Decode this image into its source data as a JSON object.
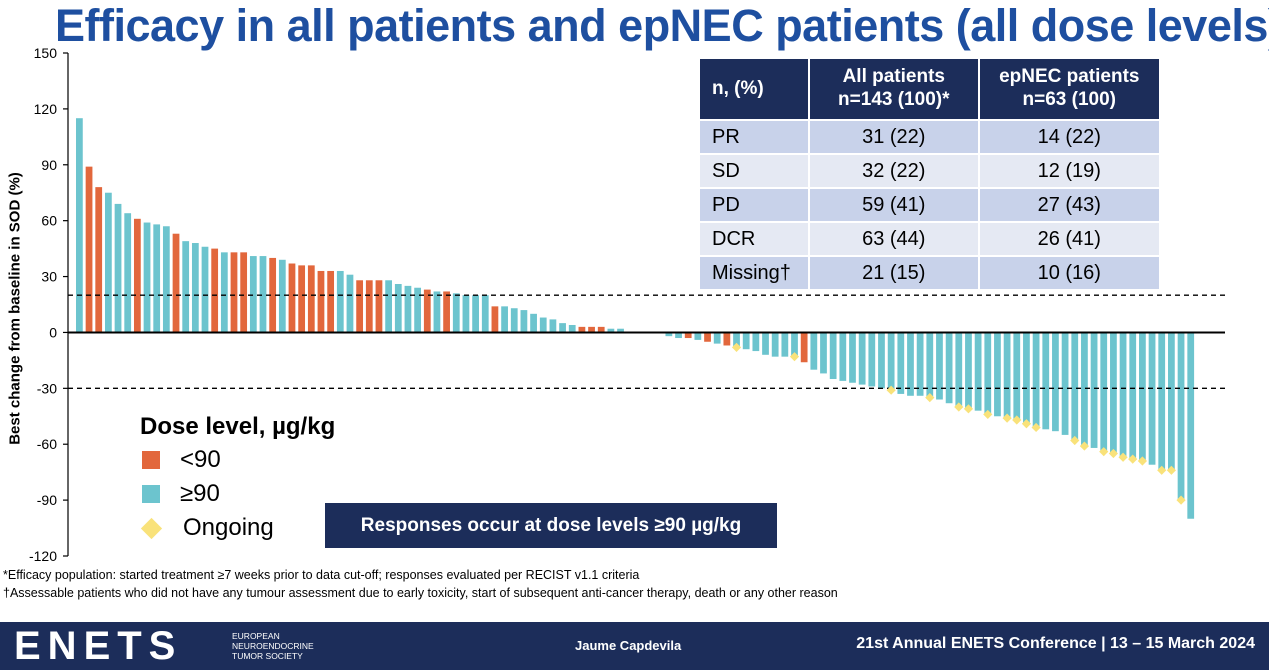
{
  "slide": {
    "title": "Efficacy in all patients and epNEC patients (all dose levels)"
  },
  "chart_data": {
    "type": "bar",
    "ylabel": "Best change from baseline in SOD (%)",
    "ylim": [
      -120,
      150
    ],
    "yticks": [
      "150",
      "120",
      "90",
      "60",
      "30",
      "0",
      "-30",
      "-60",
      "-90",
      "-120"
    ],
    "reference_lines": [
      20,
      -30
    ],
    "colors": {
      "<90": "#e2673c",
      "≥90": "#6cc4ce",
      "ongoing": "#f9e27a"
    },
    "bars": [
      {
        "v": 115,
        "d": "≥90"
      },
      {
        "v": 89,
        "d": "<90"
      },
      {
        "v": 78,
        "d": "<90"
      },
      {
        "v": 75,
        "d": "≥90"
      },
      {
        "v": 69,
        "d": "≥90"
      },
      {
        "v": 64,
        "d": "≥90"
      },
      {
        "v": 61,
        "d": "<90"
      },
      {
        "v": 59,
        "d": "≥90"
      },
      {
        "v": 58,
        "d": "≥90"
      },
      {
        "v": 57,
        "d": "≥90"
      },
      {
        "v": 53,
        "d": "<90"
      },
      {
        "v": 49,
        "d": "≥90"
      },
      {
        "v": 48,
        "d": "≥90"
      },
      {
        "v": 46,
        "d": "≥90"
      },
      {
        "v": 45,
        "d": "<90"
      },
      {
        "v": 43,
        "d": "≥90"
      },
      {
        "v": 43,
        "d": "<90"
      },
      {
        "v": 43,
        "d": "<90"
      },
      {
        "v": 41,
        "d": "≥90"
      },
      {
        "v": 41,
        "d": "≥90"
      },
      {
        "v": 40,
        "d": "<90"
      },
      {
        "v": 39,
        "d": "≥90"
      },
      {
        "v": 37,
        "d": "<90"
      },
      {
        "v": 36,
        "d": "<90"
      },
      {
        "v": 36,
        "d": "<90"
      },
      {
        "v": 33,
        "d": "<90"
      },
      {
        "v": 33,
        "d": "<90"
      },
      {
        "v": 33,
        "d": "≥90"
      },
      {
        "v": 31,
        "d": "≥90"
      },
      {
        "v": 28,
        "d": "<90"
      },
      {
        "v": 28,
        "d": "<90"
      },
      {
        "v": 28,
        "d": "<90"
      },
      {
        "v": 28,
        "d": "≥90"
      },
      {
        "v": 26,
        "d": "≥90"
      },
      {
        "v": 25,
        "d": "≥90"
      },
      {
        "v": 24,
        "d": "≥90"
      },
      {
        "v": 23,
        "d": "<90"
      },
      {
        "v": 22,
        "d": "≥90"
      },
      {
        "v": 22,
        "d": "<90"
      },
      {
        "v": 21,
        "d": "≥90"
      },
      {
        "v": 20,
        "d": "≥90"
      },
      {
        "v": 20,
        "d": "≥90"
      },
      {
        "v": 20,
        "d": "≥90"
      },
      {
        "v": 14,
        "d": "<90"
      },
      {
        "v": 14,
        "d": "≥90"
      },
      {
        "v": 13,
        "d": "≥90"
      },
      {
        "v": 12,
        "d": "≥90"
      },
      {
        "v": 10,
        "d": "≥90"
      },
      {
        "v": 8,
        "d": "≥90"
      },
      {
        "v": 7,
        "d": "≥90"
      },
      {
        "v": 5,
        "d": "≥90"
      },
      {
        "v": 4,
        "d": "≥90"
      },
      {
        "v": 3,
        "d": "<90"
      },
      {
        "v": 3,
        "d": "<90"
      },
      {
        "v": 3,
        "d": "<90"
      },
      {
        "v": 2,
        "d": "≥90"
      },
      {
        "v": 2,
        "d": "≥90"
      },
      {
        "v": 0,
        "d": "≥90"
      },
      {
        "v": 0,
        "d": "≥90"
      },
      {
        "v": 0,
        "d": "≥90"
      },
      {
        "v": 0,
        "d": "≥90"
      },
      {
        "v": -2,
        "d": "≥90"
      },
      {
        "v": -3,
        "d": "≥90"
      },
      {
        "v": -3,
        "d": "<90"
      },
      {
        "v": -4,
        "d": "≥90"
      },
      {
        "v": -5,
        "d": "<90"
      },
      {
        "v": -6,
        "d": "≥90"
      },
      {
        "v": -7,
        "d": "<90"
      },
      {
        "v": -8,
        "d": "≥90",
        "o": true
      },
      {
        "v": -9,
        "d": "≥90"
      },
      {
        "v": -10,
        "d": "≥90"
      },
      {
        "v": -12,
        "d": "≥90"
      },
      {
        "v": -13,
        "d": "≥90"
      },
      {
        "v": -13,
        "d": "≥90"
      },
      {
        "v": -13,
        "d": "≥90",
        "o": true
      },
      {
        "v": -16,
        "d": "<90"
      },
      {
        "v": -20,
        "d": "≥90"
      },
      {
        "v": -22,
        "d": "≥90"
      },
      {
        "v": -25,
        "d": "≥90"
      },
      {
        "v": -26,
        "d": "≥90"
      },
      {
        "v": -27,
        "d": "≥90"
      },
      {
        "v": -28,
        "d": "≥90"
      },
      {
        "v": -29,
        "d": "≥90"
      },
      {
        "v": -30,
        "d": "≥90"
      },
      {
        "v": -31,
        "d": "≥90",
        "o": true
      },
      {
        "v": -33,
        "d": "≥90"
      },
      {
        "v": -34,
        "d": "≥90"
      },
      {
        "v": -34,
        "d": "≥90"
      },
      {
        "v": -35,
        "d": "≥90",
        "o": true
      },
      {
        "v": -36,
        "d": "≥90"
      },
      {
        "v": -38,
        "d": "≥90"
      },
      {
        "v": -40,
        "d": "≥90",
        "o": true
      },
      {
        "v": -41,
        "d": "≥90",
        "o": true
      },
      {
        "v": -42,
        "d": "≥90"
      },
      {
        "v": -44,
        "d": "≥90",
        "o": true
      },
      {
        "v": -45,
        "d": "≥90"
      },
      {
        "v": -46,
        "d": "≥90",
        "o": true
      },
      {
        "v": -47,
        "d": "≥90",
        "o": true
      },
      {
        "v": -49,
        "d": "≥90",
        "o": true
      },
      {
        "v": -51,
        "d": "≥90",
        "o": true
      },
      {
        "v": -52,
        "d": "≥90"
      },
      {
        "v": -53,
        "d": "≥90"
      },
      {
        "v": -55,
        "d": "≥90"
      },
      {
        "v": -58,
        "d": "≥90",
        "o": true
      },
      {
        "v": -61,
        "d": "≥90",
        "o": true
      },
      {
        "v": -62,
        "d": "≥90"
      },
      {
        "v": -64,
        "d": "≥90",
        "o": true
      },
      {
        "v": -65,
        "d": "≥90",
        "o": true
      },
      {
        "v": -67,
        "d": "≥90",
        "o": true
      },
      {
        "v": -68,
        "d": "≥90",
        "o": true
      },
      {
        "v": -69,
        "d": "≥90",
        "o": true
      },
      {
        "v": -71,
        "d": "≥90"
      },
      {
        "v": -74,
        "d": "≥90",
        "o": true
      },
      {
        "v": -74,
        "d": "≥90",
        "o": true
      },
      {
        "v": -90,
        "d": "≥90",
        "o": true
      },
      {
        "v": -100,
        "d": "≥90"
      }
    ]
  },
  "table": {
    "headers": [
      "n, (%)",
      "All patients n=143 (100)*",
      "epNEC patients n=63 (100)"
    ],
    "rows": [
      {
        "label": "PR",
        "all": "31 (22)",
        "epnec": "14 (22)"
      },
      {
        "label": "SD",
        "all": "32 (22)",
        "epnec": "12 (19)"
      },
      {
        "label": "PD",
        "all": "59 (41)",
        "epnec": "27 (43)"
      },
      {
        "label": "DCR",
        "all": "63 (44)",
        "epnec": "26 (41)"
      },
      {
        "label": "Missing†",
        "all": "21 (15)",
        "epnec": "10 (16)"
      }
    ]
  },
  "legend": {
    "title": "Dose level, µg/kg",
    "items": [
      "<90",
      "≥90",
      "Ongoing"
    ]
  },
  "banner": "Responses occur at dose levels ≥90 µg/kg",
  "footnotes": [
    "*Efficacy population: started treatment ≥7 weeks prior to data cut-off; responses evaluated per RECIST v1.1 criteria",
    "†Assessable patients who did not have any tumour assessment due to early toxicity, start of subsequent anti-cancer therapy, death or any other reason"
  ],
  "footer": {
    "logo": "ENETS",
    "org_line1": "EUROPEAN",
    "org_line2": "NEUROENDOCRINE",
    "org_line3": "TUMOR SOCIETY",
    "presenter": "Jaume Capdevila",
    "conference": "21st Annual ENETS Conference | 13 – 15 March 2024"
  }
}
